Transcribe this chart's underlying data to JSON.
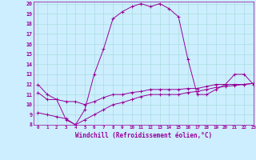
{
  "xlabel": "Windchill (Refroidissement éolien,°C)",
  "bg_color": "#cceeff",
  "line_color": "#990099",
  "grid_color": "#aadddd",
  "xlim": [
    -0.5,
    23
  ],
  "ylim": [
    8,
    20.2
  ],
  "xticks": [
    0,
    1,
    2,
    3,
    4,
    5,
    6,
    7,
    8,
    9,
    10,
    11,
    12,
    13,
    14,
    15,
    16,
    17,
    18,
    19,
    20,
    21,
    22,
    23
  ],
  "yticks": [
    8,
    9,
    10,
    11,
    12,
    13,
    14,
    15,
    16,
    17,
    18,
    19,
    20
  ],
  "hours": [
    0,
    1,
    2,
    3,
    4,
    5,
    6,
    7,
    8,
    9,
    10,
    11,
    12,
    13,
    14,
    15,
    16,
    17,
    18,
    19,
    20,
    21,
    22,
    23
  ],
  "temp": [
    12,
    11,
    10.5,
    8.5,
    8,
    9.5,
    13,
    15.5,
    18.5,
    19.2,
    19.7,
    20,
    19.7,
    20,
    19.5,
    18.7,
    14.5,
    11,
    11,
    11.5,
    12,
    13,
    13,
    12
  ],
  "wc1": [
    11.2,
    10.5,
    10.5,
    10.3,
    10.3,
    10.0,
    10.3,
    10.7,
    11.0,
    11.0,
    11.2,
    11.3,
    11.5,
    11.5,
    11.5,
    11.5,
    11.6,
    11.6,
    11.8,
    12.0,
    12.0,
    12.0,
    12.0,
    12.1
  ],
  "wc2": [
    9.2,
    9.0,
    8.8,
    8.6,
    8.0,
    8.5,
    9.0,
    9.5,
    10.0,
    10.2,
    10.5,
    10.8,
    11.0,
    11.0,
    11.0,
    11.0,
    11.2,
    11.3,
    11.5,
    11.7,
    11.8,
    11.9,
    12.0,
    12.1
  ]
}
